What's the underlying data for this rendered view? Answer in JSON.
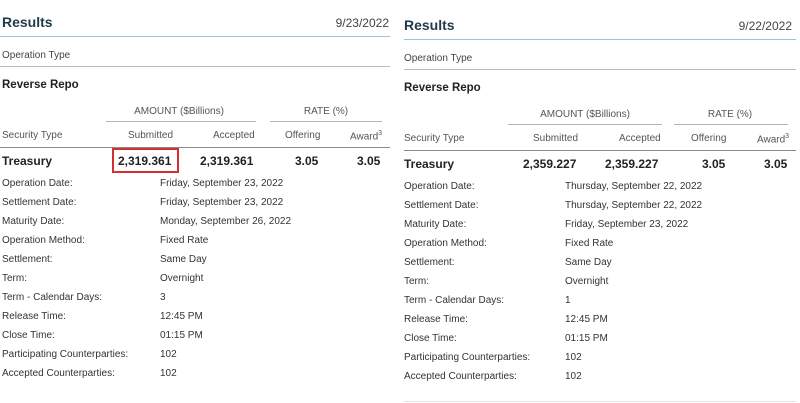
{
  "panels": [
    {
      "heading": "Results",
      "date": "9/23/2022",
      "operation_type_label": "Operation Type",
      "operation_name": "Reverse Repo",
      "amount_group": "AMOUNT ($Billions)",
      "rate_group": "RATE (%)",
      "security_type_header": "Security Type",
      "submitted_header": "Submitted",
      "accepted_header": "Accepted",
      "offering_header": "Offering",
      "award_header": "Award",
      "award_sup": "3",
      "row": {
        "security": "Treasury",
        "submitted": "2,319.361",
        "accepted": "2,319.361",
        "offering": "3.05",
        "award": "3.05"
      },
      "details": [
        {
          "label": "Operation Date:",
          "value": "Friday, September 23, 2022"
        },
        {
          "label": "Settlement Date:",
          "value": "Friday, September 23, 2022"
        },
        {
          "label": "Maturity Date:",
          "value": "Monday, September 26, 2022"
        },
        {
          "label": "Operation Method:",
          "value": "Fixed Rate"
        },
        {
          "label": "Settlement:",
          "value": "Same Day"
        },
        {
          "label": "Term:",
          "value": "Overnight"
        },
        {
          "label": "Term - Calendar Days:",
          "value": "3"
        },
        {
          "label": "Release Time:",
          "value": "12:45 PM"
        },
        {
          "label": "Close Time:",
          "value": "01:15 PM"
        },
        {
          "label": "Participating Counterparties:",
          "value": "102"
        },
        {
          "label": "Accepted Counterparties:",
          "value": "102"
        }
      ]
    },
    {
      "heading": "Results",
      "date": "9/22/2022",
      "operation_type_label": "Operation Type",
      "operation_name": "Reverse Repo",
      "amount_group": "AMOUNT ($Billions)",
      "rate_group": "RATE (%)",
      "security_type_header": "Security Type",
      "submitted_header": "Submitted",
      "accepted_header": "Accepted",
      "offering_header": "Offering",
      "award_header": "Award",
      "award_sup": "3",
      "row": {
        "security": "Treasury",
        "submitted": "2,359.227",
        "accepted": "2,359.227",
        "offering": "3.05",
        "award": "3.05"
      },
      "details": [
        {
          "label": "Operation Date:",
          "value": "Thursday, September 22, 2022"
        },
        {
          "label": "Settlement Date:",
          "value": "Thursday, September 22, 2022"
        },
        {
          "label": "Maturity Date:",
          "value": "Friday, September 23, 2022"
        },
        {
          "label": "Operation Method:",
          "value": "Fixed Rate"
        },
        {
          "label": "Settlement:",
          "value": "Same Day"
        },
        {
          "label": "Term:",
          "value": "Overnight"
        },
        {
          "label": "Term - Calendar Days:",
          "value": "1"
        },
        {
          "label": "Release Time:",
          "value": "12:45 PM"
        },
        {
          "label": "Close Time:",
          "value": "01:15 PM"
        },
        {
          "label": "Participating Counterparties:",
          "value": "102"
        },
        {
          "label": "Accepted Counterparties:",
          "value": "102"
        }
      ]
    }
  ],
  "highlight_color": "#d32f2f",
  "accent_color": "#9ec3d8"
}
